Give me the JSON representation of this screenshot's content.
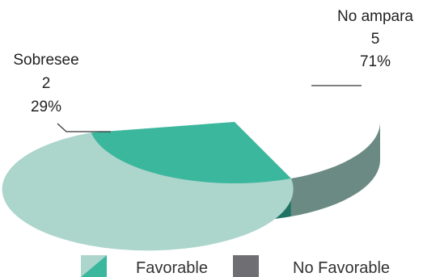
{
  "chart_data": {
    "type": "pie",
    "categories": [
      "No ampara",
      "Sobresee"
    ],
    "values": [
      5,
      2
    ],
    "percent_labels": [
      "71%",
      "29%"
    ],
    "colors": {
      "no_ampara_top": "#acd5cc",
      "no_ampara_side": "#6b8a83",
      "sobresee_top": "#3bb79e",
      "sobresee_side": "#207363"
    },
    "legend": {
      "position": "bottom",
      "items": [
        {
          "label": "Favorable",
          "color_a": "#acd5cc",
          "color_b": "#3bb79e"
        },
        {
          "label": "No Favorable",
          "color": "#6f6f73"
        }
      ]
    }
  }
}
